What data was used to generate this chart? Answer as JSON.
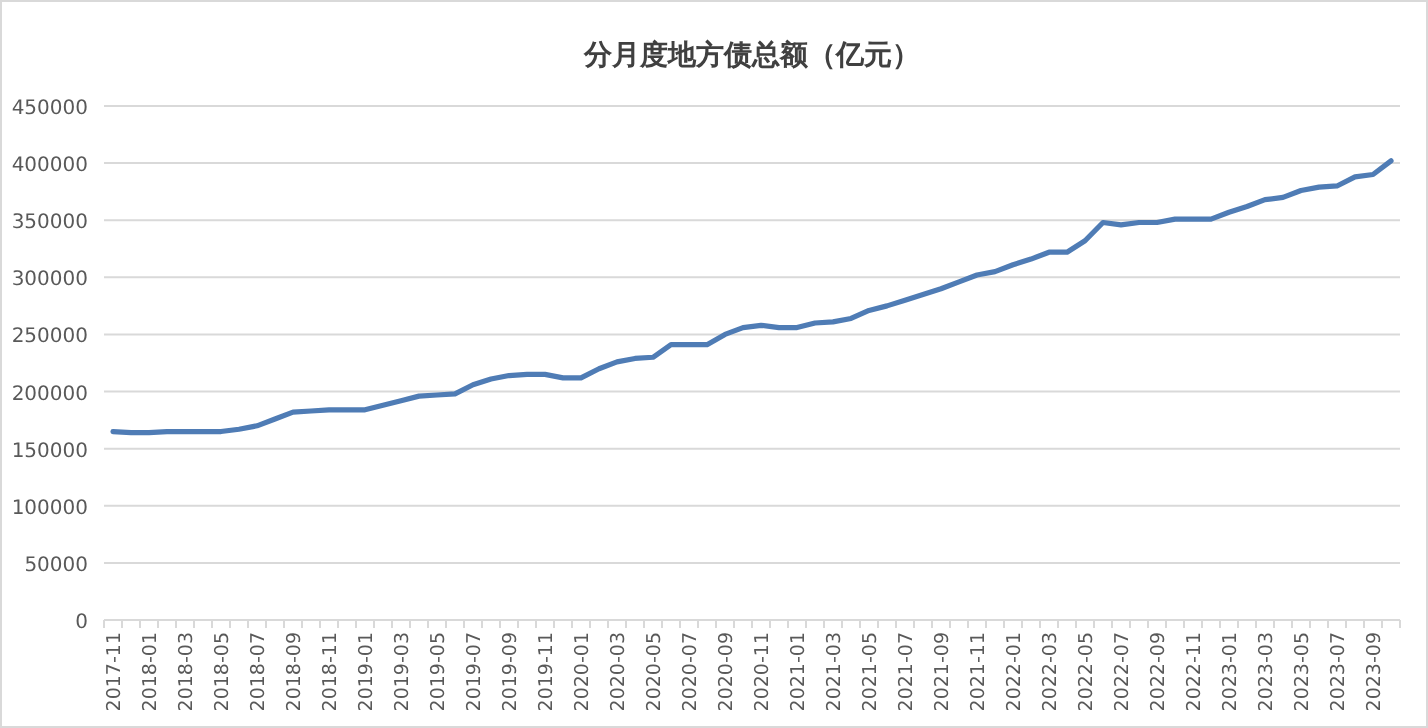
{
  "chart_data": {
    "type": "line",
    "title": "分月度地方债总额（亿元）",
    "categories": [
      "2017-11",
      null,
      "2018-01",
      null,
      "2018-03",
      null,
      "2018-05",
      null,
      "2018-07",
      null,
      "2018-09",
      null,
      "2018-11",
      null,
      "2019-01",
      null,
      "2019-03",
      null,
      "2019-05",
      null,
      "2019-07",
      null,
      "2019-09",
      null,
      "2019-11",
      null,
      "2020-01",
      null,
      "2020-03",
      null,
      "2020-05",
      null,
      "2020-07",
      null,
      "2020-09",
      null,
      "2020-11",
      null,
      "2021-01",
      null,
      "2021-03",
      null,
      "2021-05",
      null,
      "2021-07",
      null,
      "2021-09",
      null,
      "2021-11",
      null,
      "2022-01",
      null,
      "2022-03",
      null,
      "2022-05",
      null,
      "2022-07",
      null,
      "2022-09",
      null,
      "2022-11",
      null,
      "2023-01",
      null,
      "2023-03",
      null,
      "2023-05",
      null,
      "2023-07",
      null,
      "2023-09",
      null
    ],
    "values": [
      165000,
      164000,
      164000,
      165000,
      165000,
      165000,
      165000,
      167000,
      170000,
      176000,
      182000,
      183000,
      184000,
      184000,
      184000,
      188000,
      192000,
      196000,
      197000,
      198000,
      206000,
      211000,
      214000,
      215000,
      215000,
      212000,
      212000,
      220000,
      226000,
      229000,
      230000,
      241000,
      241000,
      241000,
      250000,
      256000,
      258000,
      256000,
      256000,
      260000,
      261000,
      264000,
      271000,
      275000,
      280000,
      285000,
      290000,
      296000,
      302000,
      305000,
      311000,
      316000,
      322000,
      322000,
      332000,
      348000,
      346000,
      348000,
      348000,
      351000,
      351000,
      351000,
      357000,
      362000,
      368000,
      370000,
      376000,
      379000,
      380000,
      388000,
      390000,
      402000
    ],
    "color": "#4f7cb5",
    "ylim": [
      0,
      450000
    ],
    "yticks": [
      0,
      50000,
      100000,
      150000,
      200000,
      250000,
      300000,
      350000,
      400000,
      450000
    ],
    "grid": "y"
  }
}
